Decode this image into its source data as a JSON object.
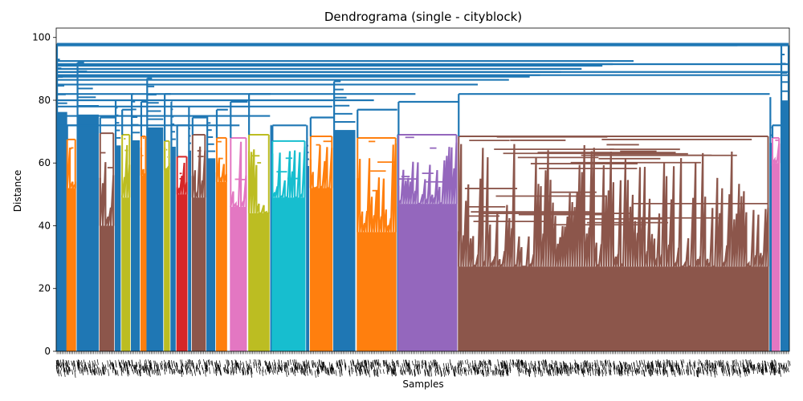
{
  "chart_data": {
    "type": "dendrogram",
    "title": "Dendrograma (single - cityblock)",
    "xlabel": "Samples",
    "ylabel": "Distance",
    "ylim": [
      0,
      103
    ],
    "yticks": [
      0,
      20,
      40,
      60,
      80,
      100
    ],
    "grid": false,
    "above_threshold_color": "#1f77b4",
    "clusters": [
      {
        "name": "C1",
        "color": "#ff7f0e",
        "x_start": 0.015,
        "x_end": 0.026,
        "height": 67.5,
        "min_leaf": 52
      },
      {
        "name": "C2",
        "color": "#8c564b",
        "x_start": 0.06,
        "x_end": 0.078,
        "height": 69.5,
        "min_leaf": 40
      },
      {
        "name": "C3",
        "color": "#bcbd22",
        "x_start": 0.09,
        "x_end": 0.1,
        "height": 69.0,
        "min_leaf": 49
      },
      {
        "name": "C4",
        "color": "#ff7f0e",
        "x_start": 0.116,
        "x_end": 0.122,
        "height": 68.5,
        "min_leaf": 56
      },
      {
        "name": "C5",
        "color": "#bcbd22",
        "x_start": 0.148,
        "x_end": 0.154,
        "height": 67.0,
        "min_leaf": 58
      },
      {
        "name": "C6",
        "color": "#d62728",
        "x_start": 0.165,
        "x_end": 0.178,
        "height": 62.0,
        "min_leaf": 50
      },
      {
        "name": "C7",
        "color": "#8c564b",
        "x_start": 0.186,
        "x_end": 0.203,
        "height": 69.0,
        "min_leaf": 49
      },
      {
        "name": "C8",
        "color": "#ff7f0e",
        "x_start": 0.219,
        "x_end": 0.232,
        "height": 68.0,
        "min_leaf": 54
      },
      {
        "name": "C9",
        "color": "#e377c2",
        "x_start": 0.238,
        "x_end": 0.259,
        "height": 68.0,
        "min_leaf": 46
      },
      {
        "name": "C10",
        "color": "#bcbd22",
        "x_start": 0.263,
        "x_end": 0.29,
        "height": 69.0,
        "min_leaf": 44
      },
      {
        "name": "C11",
        "color": "#17becf",
        "x_start": 0.295,
        "x_end": 0.339,
        "height": 67.0,
        "min_leaf": 49
      },
      {
        "name": "C12",
        "color": "#ff7f0e",
        "x_start": 0.347,
        "x_end": 0.376,
        "height": 68.5,
        "min_leaf": 52
      },
      {
        "name": "C13",
        "color": "#ff7f0e",
        "x_start": 0.411,
        "x_end": 0.463,
        "height": 68.0,
        "min_leaf": 38
      },
      {
        "name": "C14",
        "color": "#9467bd",
        "x_start": 0.467,
        "x_end": 0.546,
        "height": 69.0,
        "min_leaf": 47
      },
      {
        "name": "C15",
        "color": "#8c564b",
        "x_start": 0.549,
        "x_end": 0.971,
        "height": 68.5,
        "min_leaf": 27
      },
      {
        "name": "C16",
        "color": "#e377c2",
        "x_start": 0.977,
        "x_end": 0.986,
        "height": 68.0,
        "min_leaf": 60
      }
    ],
    "blue_blocks": [
      {
        "x_start": 0.0,
        "x_end": 0.015,
        "height": 93.0
      },
      {
        "x_start": 0.028,
        "x_end": 0.058,
        "height": 92.0
      },
      {
        "x_start": 0.08,
        "x_end": 0.088,
        "height": 80.0
      },
      {
        "x_start": 0.102,
        "x_end": 0.114,
        "height": 82.0
      },
      {
        "x_start": 0.123,
        "x_end": 0.146,
        "height": 87.0
      },
      {
        "x_start": 0.156,
        "x_end": 0.163,
        "height": 79.5
      },
      {
        "x_start": 0.18,
        "x_end": 0.184,
        "height": 78.0
      },
      {
        "x_start": 0.205,
        "x_end": 0.217,
        "height": 75.0
      },
      {
        "x_start": 0.292,
        "x_end": 0.294,
        "height": 72.0
      },
      {
        "x_start": 0.341,
        "x_end": 0.345,
        "height": 72.0
      },
      {
        "x_start": 0.378,
        "x_end": 0.408,
        "height": 86.0
      },
      {
        "x_start": 0.465,
        "x_end": 0.466,
        "height": 69.0
      },
      {
        "x_start": 0.973,
        "x_end": 0.976,
        "height": 81.0
      },
      {
        "x_start": 0.988,
        "x_end": 1.0,
        "height": 97.5
      }
    ],
    "top_links": [
      98.0,
      97.5,
      92.5,
      91.5,
      91.0,
      90.0,
      89.0,
      88.0,
      87.5,
      86.5,
      85.0,
      82.0,
      80.0,
      78.0,
      75.0,
      72.0
    ]
  }
}
